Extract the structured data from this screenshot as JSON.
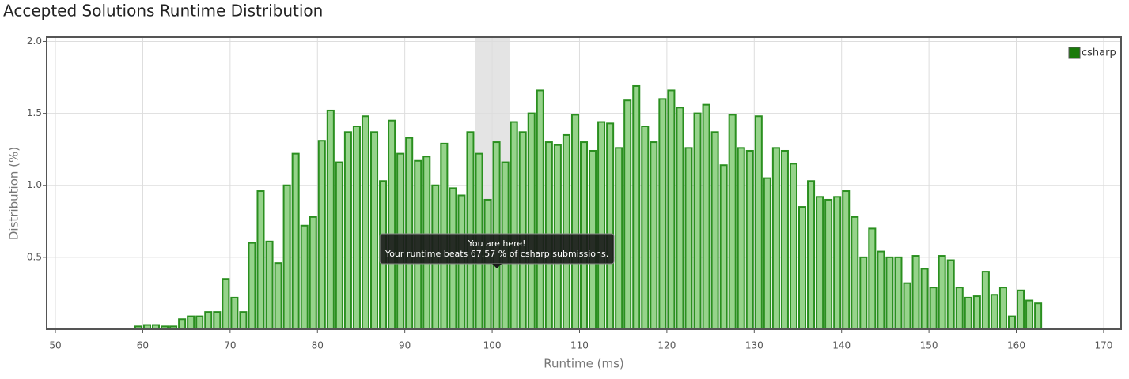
{
  "chart_data": {
    "type": "histogram",
    "title": "Accepted Solutions Runtime Distribution",
    "x_label": "Runtime (ms)",
    "y_label": "Distribution (%)",
    "bins": [
      59,
      60,
      61,
      62,
      63,
      64,
      65,
      66,
      67,
      68,
      69,
      70,
      71,
      72,
      73,
      74,
      75,
      76,
      77,
      78,
      79,
      80,
      81,
      82,
      83,
      84,
      85,
      86,
      87,
      88,
      89,
      90,
      91,
      92,
      93,
      94,
      95,
      96,
      97,
      98,
      99,
      100,
      101,
      102,
      103,
      104,
      105,
      106,
      107,
      108,
      109,
      110,
      111,
      112,
      113,
      114,
      115,
      116,
      117,
      118,
      119,
      120,
      121,
      122,
      123,
      124,
      125,
      126,
      127,
      128,
      129,
      130,
      131,
      132,
      133,
      134,
      135,
      136,
      137,
      138,
      139,
      140,
      141,
      142,
      143,
      144,
      145,
      146,
      147,
      148,
      149,
      150,
      151,
      152,
      153,
      154,
      155,
      156,
      157,
      158,
      159,
      160,
      161,
      162,
      163
    ],
    "series": [
      {
        "name": "csharp",
        "color": "#2a8f1f",
        "fill": "#96d38b",
        "legend_color": "#1a7a0a",
        "values": [
          0.02,
          0.03,
          0.03,
          0.02,
          0.02,
          0.07,
          0.09,
          0.09,
          0.12,
          0.12,
          0.35,
          0.22,
          0.12,
          0.6,
          0.96,
          0.61,
          0.46,
          1.0,
          1.22,
          0.72,
          0.78,
          1.31,
          1.52,
          1.16,
          1.37,
          1.41,
          1.48,
          1.37,
          1.03,
          1.45,
          1.22,
          1.33,
          1.17,
          1.2,
          1.0,
          1.29,
          0.98,
          0.93,
          1.37,
          1.22,
          0.9,
          1.3,
          1.16,
          1.44,
          1.37,
          1.5,
          1.66,
          1.3,
          1.28,
          1.35,
          1.49,
          1.3,
          1.24,
          1.44,
          1.43,
          1.26,
          1.59,
          1.69,
          1.41,
          1.3,
          1.6,
          1.66,
          1.54,
          1.26,
          1.5,
          1.56,
          1.37,
          1.14,
          1.49,
          1.26,
          1.24,
          1.48,
          1.05,
          1.26,
          1.24,
          1.15,
          0.85,
          1.03,
          0.92,
          0.9,
          0.92,
          0.96,
          0.78,
          0.5,
          0.7,
          0.54,
          0.5,
          0.5,
          0.32,
          0.51,
          0.42,
          0.29,
          0.51,
          0.48,
          0.29,
          0.22,
          0.23,
          0.4,
          0.24,
          0.29,
          0.09,
          0.27,
          0.2,
          0.18
        ]
      }
    ],
    "xlim": [
      49,
      172
    ],
    "ylim": [
      0,
      2.03
    ],
    "xticks": [
      50,
      60,
      70,
      80,
      90,
      100,
      110,
      120,
      130,
      140,
      150,
      160,
      170
    ],
    "yticks": [
      0.5,
      {
        "value": 1,
        "label": "1.0"
      },
      1.5,
      {
        "value": 2,
        "label": "2.0"
      }
    ],
    "grid": true,
    "legend": "top-right",
    "highlight": [
      98,
      102
    ],
    "annotation": {
      "title": "You are here!",
      "text": "Your runtime beats 67.57 % of csharp submissions."
    }
  }
}
